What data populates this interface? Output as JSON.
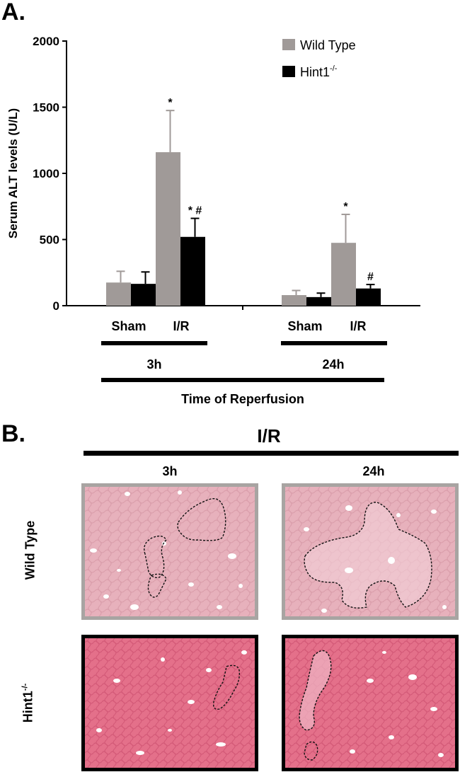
{
  "panel_a": {
    "label": "A."
  },
  "panel_b": {
    "label": "B.",
    "header": "I/R",
    "columns": [
      "3h",
      "24h"
    ],
    "rows": [
      "Wild Type",
      "Hint1"
    ],
    "row_superscript": "-/-"
  },
  "chart_data": {
    "type": "bar",
    "ylabel": "Serum ALT levels (U/L)",
    "xlabel": "Time of Reperfusion",
    "ylim": [
      0,
      2000
    ],
    "yticks": [
      0,
      500,
      1000,
      1500,
      2000
    ],
    "time_groups": [
      "3h",
      "24h"
    ],
    "categories": [
      "Sham",
      "I/R",
      "Sham",
      "I/R"
    ],
    "series": [
      {
        "name": "Wild Type",
        "color": "#a09a98",
        "values": [
          175,
          1160,
          80,
          475
        ],
        "errors": [
          85,
          315,
          35,
          215
        ]
      },
      {
        "name": "Hint1",
        "name_superscript": "-/-",
        "color": "#000000",
        "values": [
          165,
          520,
          65,
          130
        ],
        "errors": [
          90,
          140,
          30,
          30
        ]
      }
    ],
    "annotations": [
      {
        "series": 0,
        "index": 1,
        "text": "*"
      },
      {
        "series": 1,
        "index": 1,
        "text": "* #"
      },
      {
        "series": 0,
        "index": 3,
        "text": "*"
      },
      {
        "series": 1,
        "index": 3,
        "text": "#"
      }
    ],
    "legend_position": "top-right",
    "grid": false
  }
}
